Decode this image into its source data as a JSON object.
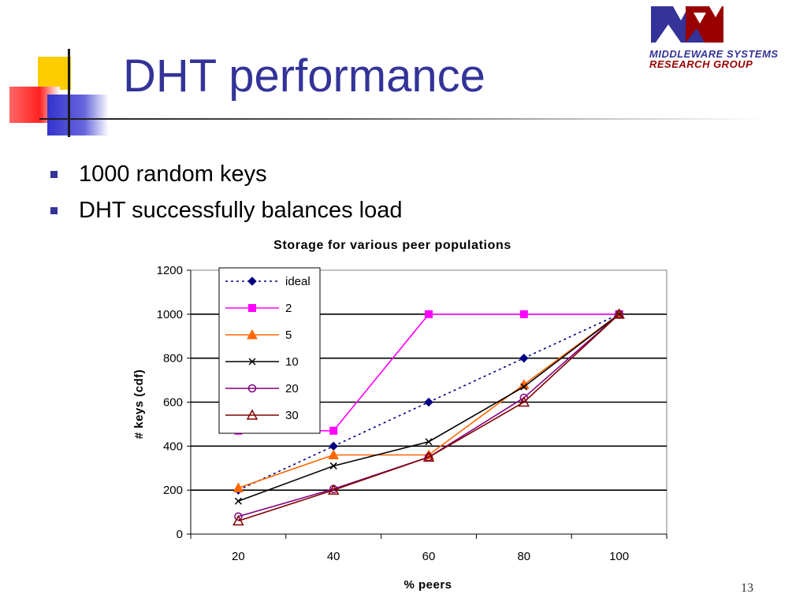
{
  "slide": {
    "title": "DHT performance",
    "bullets": [
      "1000 random keys",
      "DHT successfully balances load"
    ],
    "page_number": "13"
  },
  "logo": {
    "line1": "MIDDLEWARE SYSTEMS",
    "line2": "RESEARCH GROUP",
    "colors": {
      "blue": "#333399",
      "red": "#990000"
    }
  },
  "colors": {
    "title": "#333399",
    "bullet": "#333399"
  },
  "chart_data": {
    "type": "line",
    "title": "Storage for various peer populations",
    "xlabel": "% peers",
    "ylabel": "# keys (cdf)",
    "categories": [
      20,
      40,
      60,
      80,
      100
    ],
    "ylim": [
      0,
      1200
    ],
    "yticks": [
      0,
      200,
      400,
      600,
      800,
      1000,
      1200
    ],
    "grid": true,
    "legend_position": "top-left (inside plot)",
    "series": [
      {
        "name": "ideal",
        "values": [
          200,
          400,
          600,
          800,
          1000
        ],
        "color": "#000080",
        "marker": "diamond",
        "dash": "dotted"
      },
      {
        "name": "2",
        "values": [
          470,
          470,
          1000,
          1000,
          1000
        ],
        "color": "#ff00ff",
        "marker": "square",
        "dash": "solid"
      },
      {
        "name": "5",
        "values": [
          210,
          360,
          360,
          680,
          1000
        ],
        "color": "#ff6600",
        "marker": "triangle",
        "dash": "solid"
      },
      {
        "name": "10",
        "values": [
          150,
          310,
          420,
          670,
          1000
        ],
        "color": "#000000",
        "marker": "x",
        "dash": "solid"
      },
      {
        "name": "20",
        "values": [
          80,
          205,
          350,
          620,
          1000
        ],
        "color": "#800080",
        "marker": "circle",
        "dash": "solid"
      },
      {
        "name": "30",
        "values": [
          60,
          200,
          350,
          600,
          1000
        ],
        "color": "#800000",
        "marker": "triangle-open",
        "dash": "solid"
      }
    ]
  }
}
